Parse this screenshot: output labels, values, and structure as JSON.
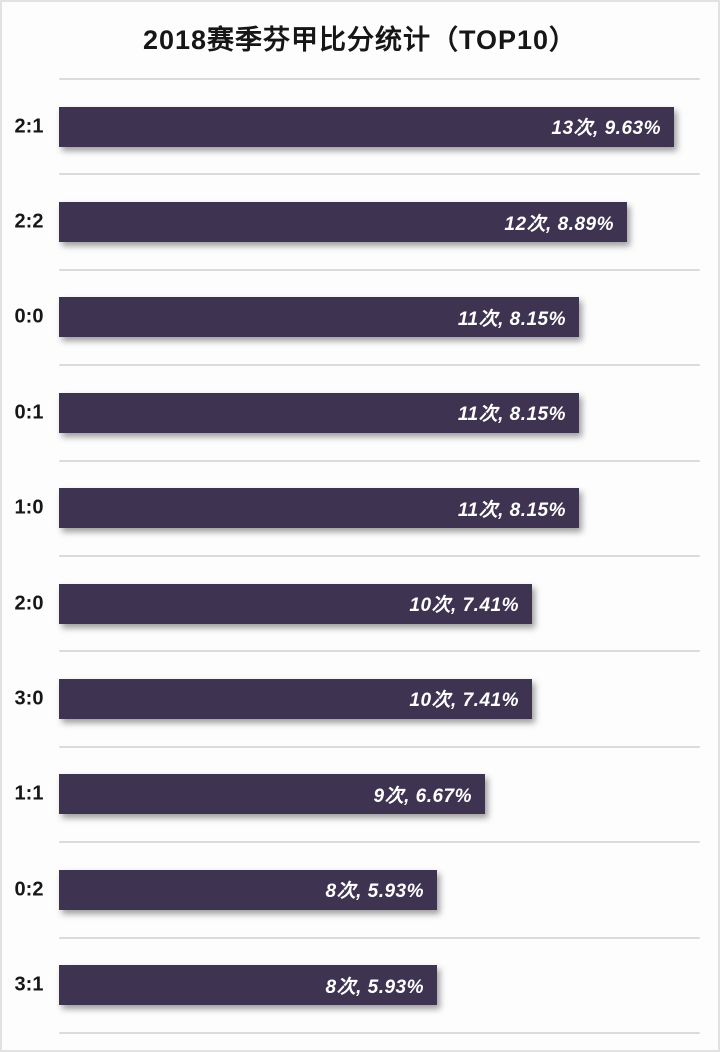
{
  "page": {
    "background": "#fdfdfd",
    "frame_color": "#e2e2e2"
  },
  "chart_data": {
    "type": "bar",
    "orientation": "horizontal",
    "title": "2018赛季芬甲比分统计（TOP10）",
    "categories": [
      "2:1",
      "2:2",
      "0:0",
      "0:1",
      "1:0",
      "2:0",
      "3:0",
      "1:1",
      "0:2",
      "3:1"
    ],
    "values": [
      13,
      12,
      11,
      11,
      11,
      10,
      10,
      9,
      8,
      8
    ],
    "percentages": [
      9.63,
      8.89,
      8.15,
      8.15,
      8.15,
      7.41,
      7.41,
      6.67,
      5.93,
      5.93
    ],
    "labels": [
      "13次, 9.63%",
      "12次, 8.89%",
      "11次, 8.15%",
      "11次, 8.15%",
      "11次, 8.15%",
      "10次, 7.41%",
      "10次, 7.41%",
      "9次, 6.67%",
      "8次, 5.93%",
      "8次, 5.93%"
    ],
    "value_unit": "次",
    "xlim": [
      0,
      13.5
    ],
    "grid": true,
    "legend": false,
    "value_labels_position": "inside-end",
    "bar_color": "#3e3452",
    "value_label_color": "#ffffff",
    "gridline_color": "#dbdbdb",
    "category_label_color": "#171717",
    "title_color": "#161616"
  }
}
